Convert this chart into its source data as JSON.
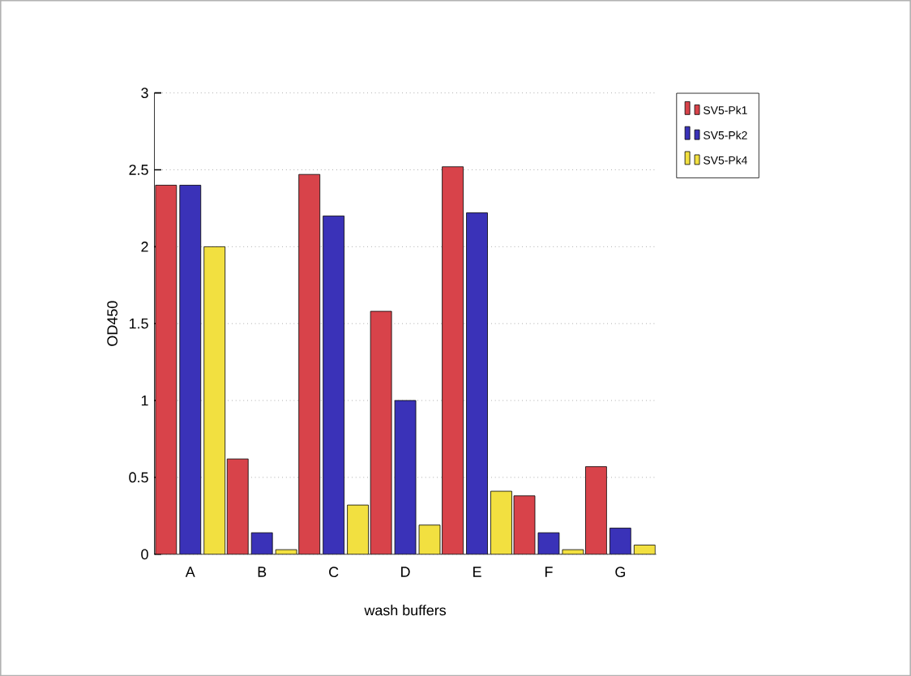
{
  "chart_data": {
    "type": "bar",
    "xlabel": "wash buffers",
    "ylabel": "OD450",
    "categories": [
      "A",
      "B",
      "C",
      "D",
      "E",
      "F",
      "G"
    ],
    "series": [
      {
        "name": "SV5-Pk1",
        "color": "#d8434a",
        "values": [
          2.4,
          0.62,
          2.47,
          1.58,
          2.52,
          0.38,
          0.57
        ]
      },
      {
        "name": "SV5-Pk2",
        "color": "#3a32b8",
        "values": [
          2.4,
          0.14,
          2.2,
          1.0,
          2.22,
          0.14,
          0.17
        ]
      },
      {
        "name": "SV5-Pk4",
        "color": "#f2e040",
        "values": [
          2.0,
          0.03,
          0.32,
          0.19,
          0.41,
          0.03,
          0.06
        ]
      }
    ],
    "ylim": [
      0,
      3
    ],
    "yticks": [
      0,
      0.5,
      1,
      1.5,
      2,
      2.5,
      3
    ],
    "grid": "y",
    "legend": "top right"
  }
}
